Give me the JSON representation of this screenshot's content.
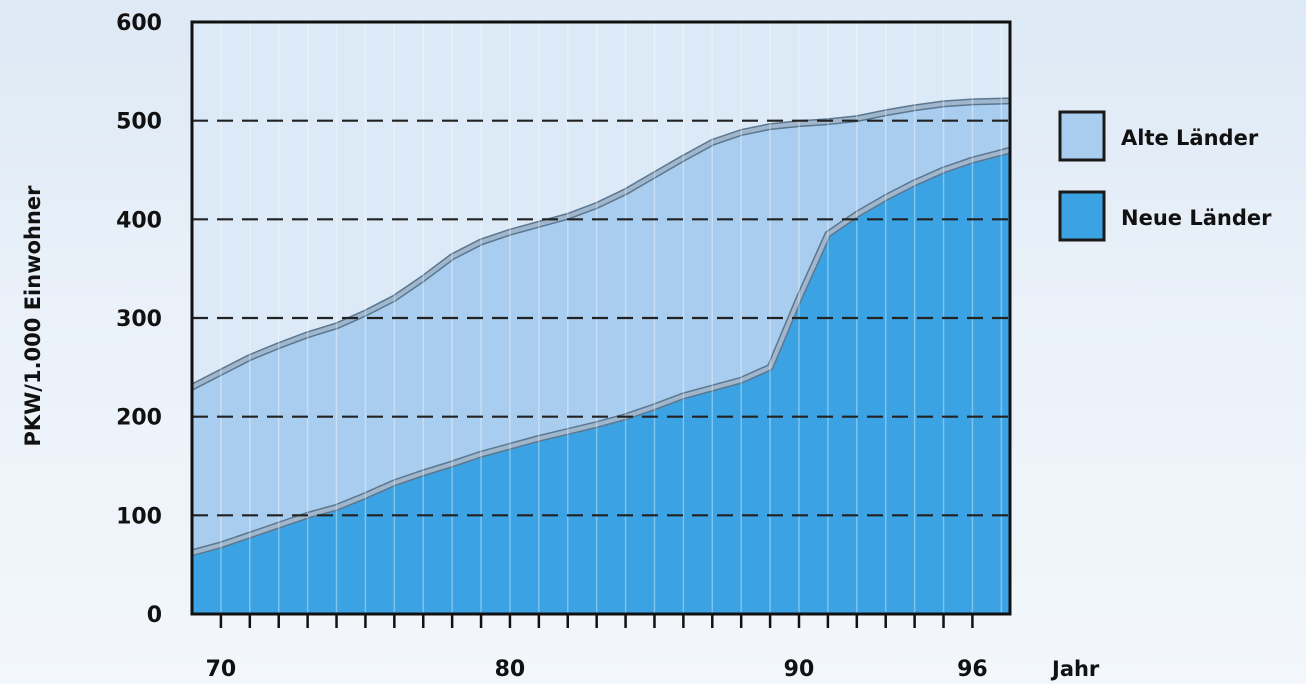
{
  "chart_data": {
    "type": "area",
    "ylabel": "PKW/1.000 Einwohner",
    "xlabel": "Jahr",
    "ylim": [
      0,
      600
    ],
    "xlim": [
      69,
      97.3
    ],
    "yticks": [
      0,
      100,
      200,
      300,
      400,
      500,
      600
    ],
    "ytick_labels": [
      "0",
      "100",
      "200",
      "300",
      "400",
      "500",
      "600"
    ],
    "xticks": [
      70,
      80,
      90,
      96
    ],
    "xtick_labels": [
      "70",
      "80",
      "90",
      "96"
    ],
    "grid": "horizontal dashed",
    "legend_position": "right",
    "series": [
      {
        "name": "Alte Länder",
        "color": "#a9cdee",
        "x": [
          69,
          70,
          71,
          72,
          73,
          74,
          75,
          76,
          77,
          78,
          79,
          80,
          81,
          82,
          83,
          84,
          85,
          86,
          87,
          88,
          89,
          90,
          91,
          92,
          93,
          94,
          95,
          96,
          97.3
        ],
        "values": [
          230,
          245,
          260,
          272,
          283,
          292,
          305,
          320,
          340,
          362,
          377,
          387,
          395,
          403,
          414,
          428,
          445,
          462,
          478,
          488,
          494,
          497,
          499,
          502,
          508,
          513,
          517,
          519,
          520
        ]
      },
      {
        "name": "Neue Länder",
        "color": "#3ba3e3",
        "x": [
          69,
          70,
          71,
          72,
          73,
          74,
          75,
          76,
          77,
          78,
          79,
          80,
          81,
          82,
          83,
          84,
          85,
          86,
          87,
          88,
          89,
          90,
          91,
          92,
          93,
          94,
          95,
          96,
          97.3
        ],
        "values": [
          62,
          70,
          80,
          90,
          100,
          108,
          120,
          133,
          143,
          152,
          162,
          170,
          178,
          185,
          192,
          200,
          210,
          221,
          229,
          237,
          250,
          320,
          385,
          405,
          422,
          437,
          450,
          460,
          470
        ]
      }
    ]
  }
}
